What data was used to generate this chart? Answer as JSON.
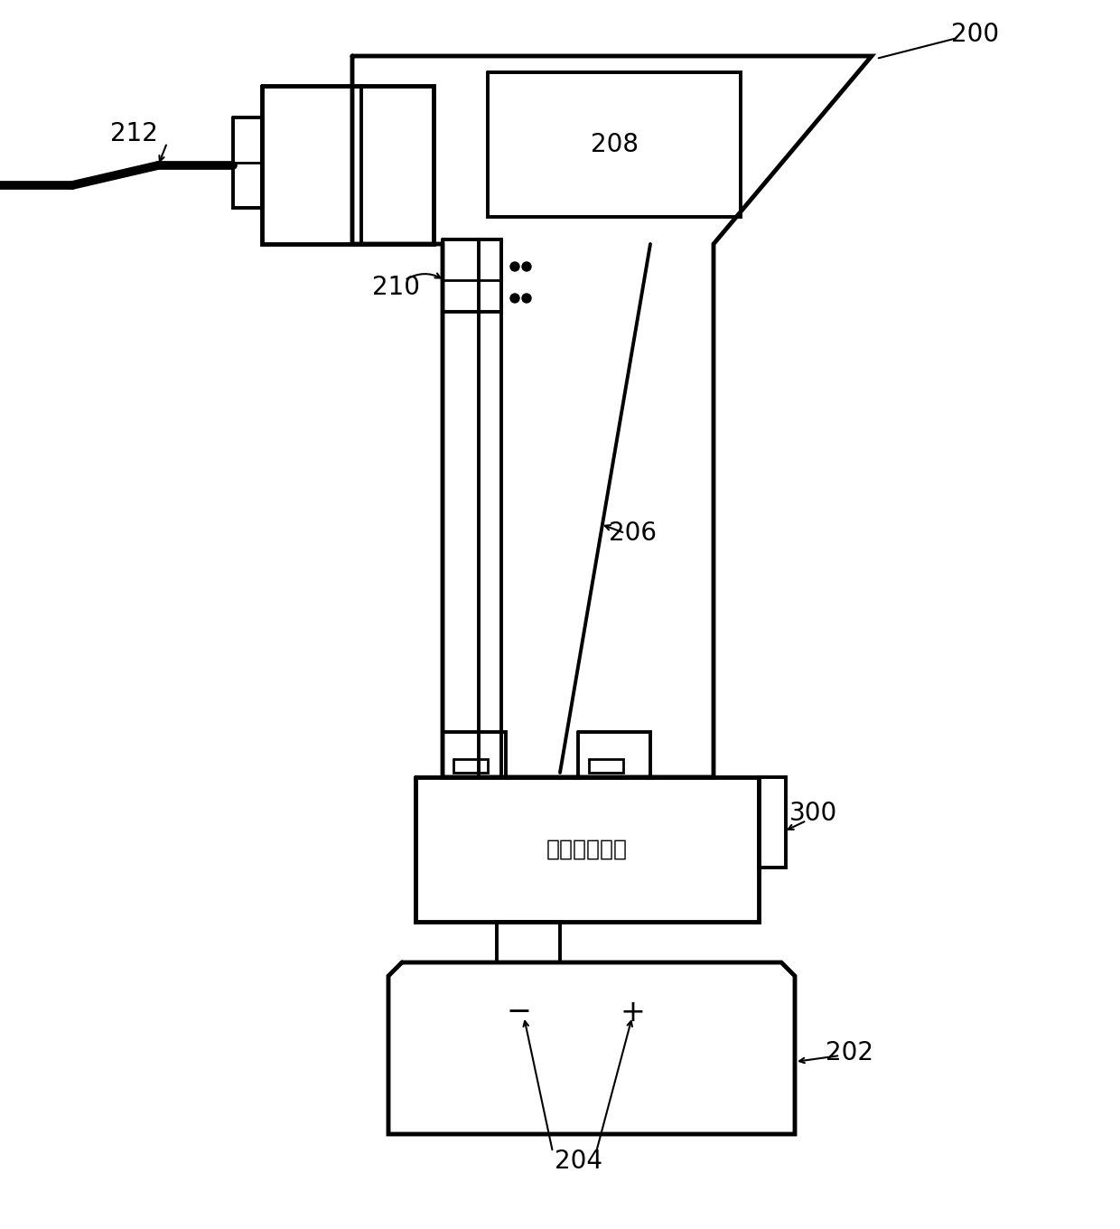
{
  "bg_color": "#ffffff",
  "line_color": "#000000",
  "label_200": "200",
  "label_202": "202",
  "label_204": "204",
  "label_206": "206",
  "label_208": "208",
  "label_210": "210",
  "label_212": "212",
  "label_300": "300",
  "label_rpm": "远程功率模块",
  "font_size_label": 20,
  "font_size_rpm": 18
}
